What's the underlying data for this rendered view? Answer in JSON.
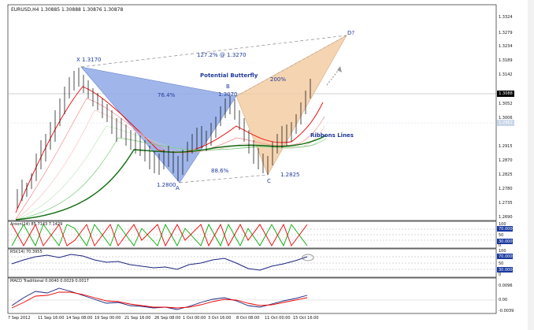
{
  "window": {
    "title": "EURUSD,H4  1.30885 1.30888 1.30876 1.30878"
  },
  "price_axis": {
    "labels": [
      "1.3324",
      "1.3279",
      "1.3234",
      "1.3189",
      "1.3142",
      "1.3097",
      "1.3052",
      "1.3006",
      "1.2961",
      "1.2915",
      "1.2870",
      "1.2825",
      "1.2780",
      "1.2735",
      "1.2690"
    ],
    "current": "1.3088",
    "marker2": "1.2962"
  },
  "pattern": {
    "x_label": "X 1.3170",
    "a_label": "A",
    "a_value": "1.2800",
    "b_label": "B",
    "b_value": "1.3070",
    "c_label": "C",
    "c_value": "1.2825",
    "d_label": "D?",
    "xd_ratio": "127.2% @ 1.3270",
    "xb_ratio": "76.4%",
    "bc_ratio": "88.6%",
    "cd_ratio": "200%",
    "title": "Potential Butterfly",
    "ribbons": "Ribbons Lines"
  },
  "aroon": {
    "label": "Aroon(14) 85.7143 7.1429",
    "scale": [
      "100",
      "70.000",
      "50",
      "30.000",
      "0"
    ]
  },
  "rsi": {
    "label": "RSI(14) 70.3955",
    "scale": [
      "100",
      "70.000",
      "50",
      "30.000",
      "0"
    ]
  },
  "macd": {
    "label": "MACD Traditional 0.0040 0.0029 0.0017",
    "scale": [
      "0.0096",
      "0.00",
      "-0.0039"
    ]
  },
  "time_axis": [
    "7 Sep 2012",
    "11 Sep 16:00",
    "14 Sep 08:00",
    "19 Sep 00:00",
    "21 Sep 16:00",
    "26 Sep 08:00",
    "1 Oct 00:00",
    "3 Oct 16:00",
    "8 Oct 08:00",
    "11 Oct 00:00",
    "15 Oct 16:00"
  ],
  "colors": {
    "xab_fill": "#8fa9e8",
    "bcd_fill": "#f3c99f",
    "blue_label": "#1f3a99",
    "aroon_up": "#00aa00",
    "aroon_down": "#ee0000",
    "rsi_line": "#1a237e",
    "macd_line": "#1a237e",
    "signal_line": "#ee0000"
  }
}
